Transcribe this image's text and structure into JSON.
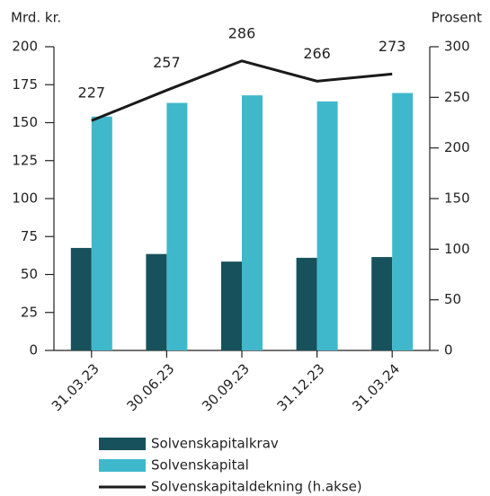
{
  "chart_data": {
    "type": "bar",
    "y_label": "Mrd. kr.",
    "y2_label": "Prosent",
    "categories": [
      "31.03.23",
      "30.06.23",
      "30.09.23",
      "31.12.23",
      "31.03.24"
    ],
    "series": [
      {
        "name": "Solvenskapitalkrav",
        "color": "#17525c",
        "values": [
          67.5,
          63.5,
          58.5,
          61,
          61.5
        ]
      },
      {
        "name": "Solvenskapital",
        "color": "#40b8cc",
        "values": [
          154,
          163,
          168,
          164,
          169.5
        ]
      },
      {
        "name": "Solvenskapitaldekning (h.akse)",
        "color": "#1a1a1a",
        "type": "line",
        "axis": "y2",
        "values": [
          227,
          257,
          286,
          266,
          273
        ]
      }
    ],
    "ylim": [
      0,
      200
    ],
    "yticks": [
      0,
      25,
      50,
      75,
      100,
      125,
      150,
      175,
      200
    ],
    "y2lim": [
      0,
      300
    ],
    "y2ticks": [
      0,
      50,
      100,
      150,
      200,
      250,
      300
    ],
    "grid": false
  }
}
